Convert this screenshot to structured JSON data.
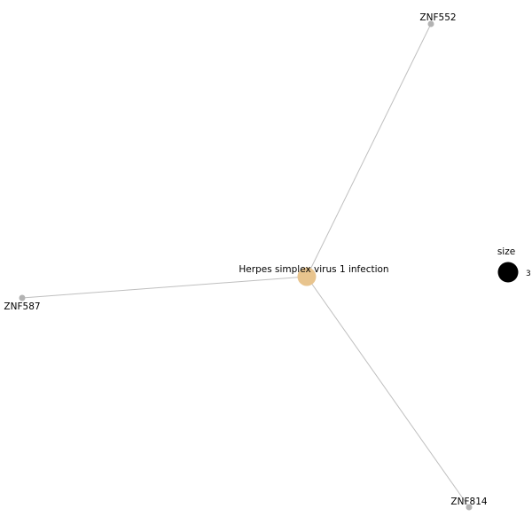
{
  "network": {
    "center": {
      "label": "Herpes simplex virus 1 infection",
      "color": "#e8c48e"
    },
    "genes": [
      {
        "label": "ZNF552"
      },
      {
        "label": "ZNF587"
      },
      {
        "label": "ZNF814"
      }
    ],
    "gene_color": "#b3b3b3",
    "edge_color": "#bfbfbf"
  },
  "legend": {
    "title": "size",
    "items": [
      {
        "label": "3",
        "color": "#000000"
      }
    ]
  }
}
